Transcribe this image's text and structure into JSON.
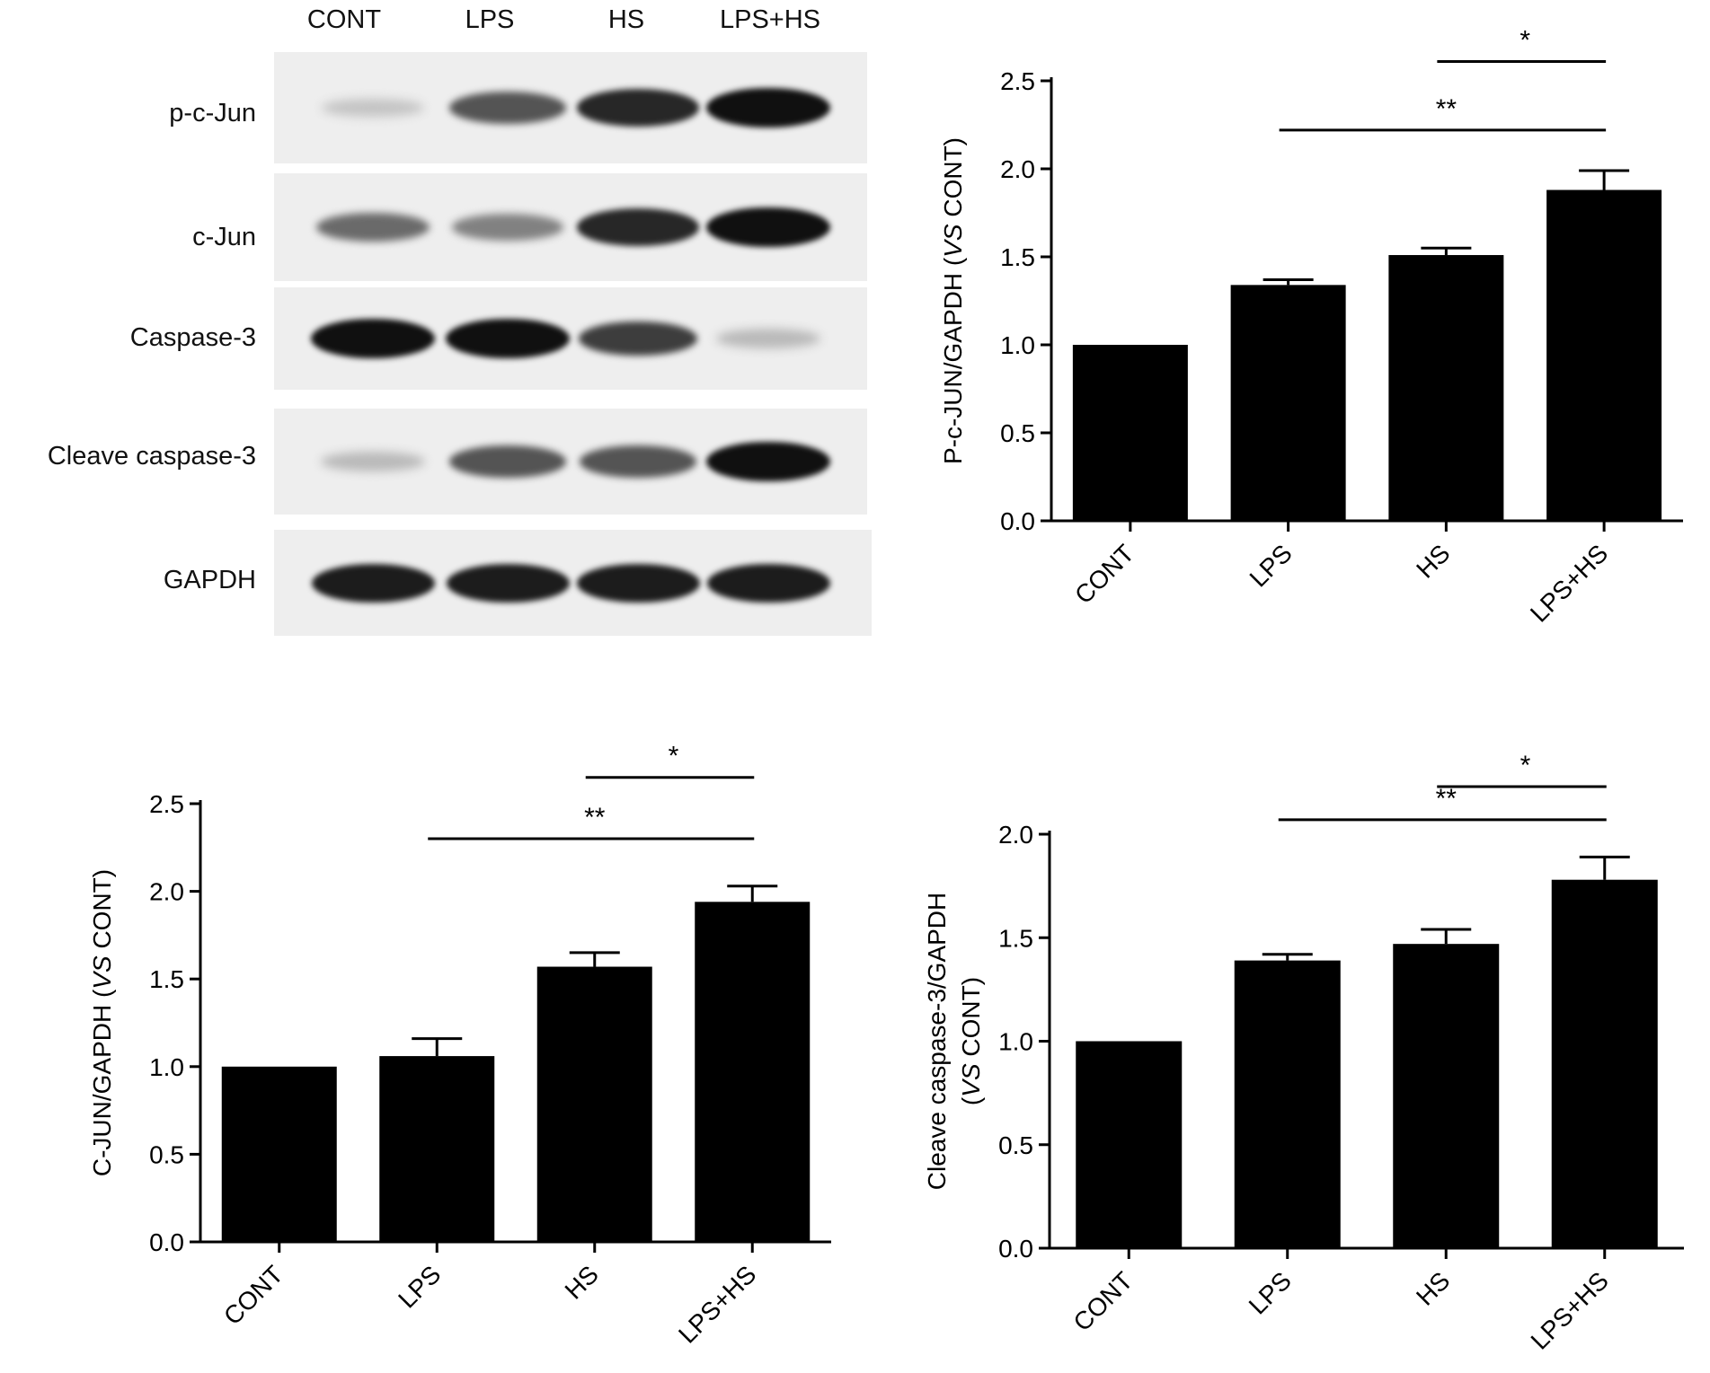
{
  "western_blot": {
    "lanes": [
      "CONT",
      "LPS",
      "HS",
      "LPS+HS"
    ],
    "proteins": [
      {
        "name": "p-c-Jun",
        "band_intensity": [
          0.15,
          0.65,
          0.85,
          0.95
        ]
      },
      {
        "name": "c-Jun",
        "band_intensity": [
          0.55,
          0.45,
          0.85,
          0.95
        ]
      },
      {
        "name": "Caspase-3",
        "band_intensity": [
          0.95,
          0.95,
          0.75,
          0.2
        ]
      },
      {
        "name": "Cleave caspase-3",
        "band_intensity": [
          0.2,
          0.65,
          0.65,
          0.95
        ]
      },
      {
        "name": "GAPDH",
        "band_intensity": [
          0.9,
          0.9,
          0.9,
          0.9
        ]
      }
    ]
  },
  "chart_data": [
    {
      "type": "bar",
      "categories": [
        "CONT",
        "LPS",
        "HS",
        "LPS+HS"
      ],
      "values": [
        1.0,
        1.34,
        1.51,
        1.88
      ],
      "errors": [
        0.0,
        0.03,
        0.04,
        0.11
      ],
      "ylabel_prefix": "P-c-JUN/GAPDH (",
      "ylabel_italic": "VS",
      "ylabel_suffix": " CONT)",
      "ylim": [
        0,
        2.5
      ],
      "yticks": [
        "0.0",
        "0.5",
        "1.0",
        "1.5",
        "2.0",
        "2.5"
      ],
      "significance": [
        {
          "from": "HS",
          "to": "LPS+HS",
          "label": "*",
          "y": 2.61
        },
        {
          "from": "LPS",
          "to": "LPS+HS",
          "label": "**",
          "y": 2.22
        }
      ],
      "bar_color": "#000000"
    },
    {
      "type": "bar",
      "categories": [
        "CONT",
        "LPS",
        "HS",
        "LPS+HS"
      ],
      "values": [
        1.0,
        1.06,
        1.57,
        1.94
      ],
      "errors": [
        0.0,
        0.1,
        0.08,
        0.09
      ],
      "ylabel_prefix": "C-JUN/GAPDH (",
      "ylabel_italic": "VS",
      "ylabel_suffix": " CONT)",
      "ylim": [
        0,
        2.5
      ],
      "yticks": [
        "0.0",
        "0.5",
        "1.0",
        "1.5",
        "2.0",
        "2.5"
      ],
      "significance": [
        {
          "from": "HS",
          "to": "LPS+HS",
          "label": "*",
          "y": 2.65
        },
        {
          "from": "LPS",
          "to": "LPS+HS",
          "label": "**",
          "y": 2.3
        }
      ],
      "bar_color": "#000000"
    },
    {
      "type": "bar",
      "categories": [
        "CONT",
        "LPS",
        "HS",
        "LPS+HS"
      ],
      "values": [
        1.0,
        1.39,
        1.47,
        1.78
      ],
      "errors": [
        0.0,
        0.03,
        0.07,
        0.11
      ],
      "ylabel_line1": "Cleave caspase-3/GAPDH",
      "ylabel_line2_prefix": "(",
      "ylabel_italic": "VS",
      "ylabel_suffix": " CONT)",
      "ylim": [
        0,
        2.0
      ],
      "yticks": [
        "0.0",
        "0.5",
        "1.0",
        "1.5",
        "2.0"
      ],
      "significance": [
        {
          "from": "HS",
          "to": "LPS+HS",
          "label": "*",
          "y": 2.23
        },
        {
          "from": "LPS",
          "to": "LPS+HS",
          "label": "**",
          "y": 2.07
        }
      ],
      "bar_color": "#000000"
    }
  ]
}
